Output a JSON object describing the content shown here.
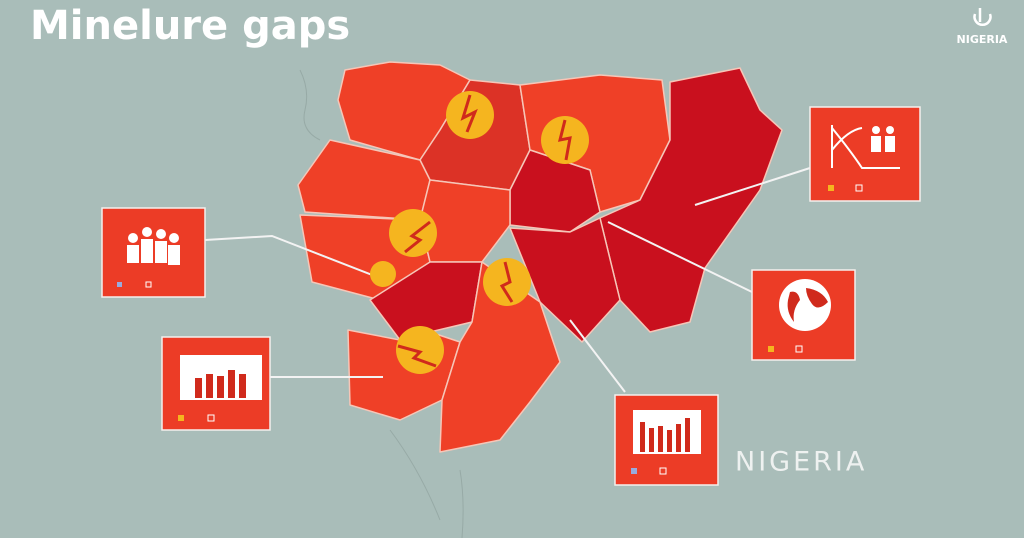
{
  "header": {
    "title": "Minelure gaps",
    "logo": "NIGERIA"
  },
  "map": {
    "label": "NIGERIA"
  }
}
